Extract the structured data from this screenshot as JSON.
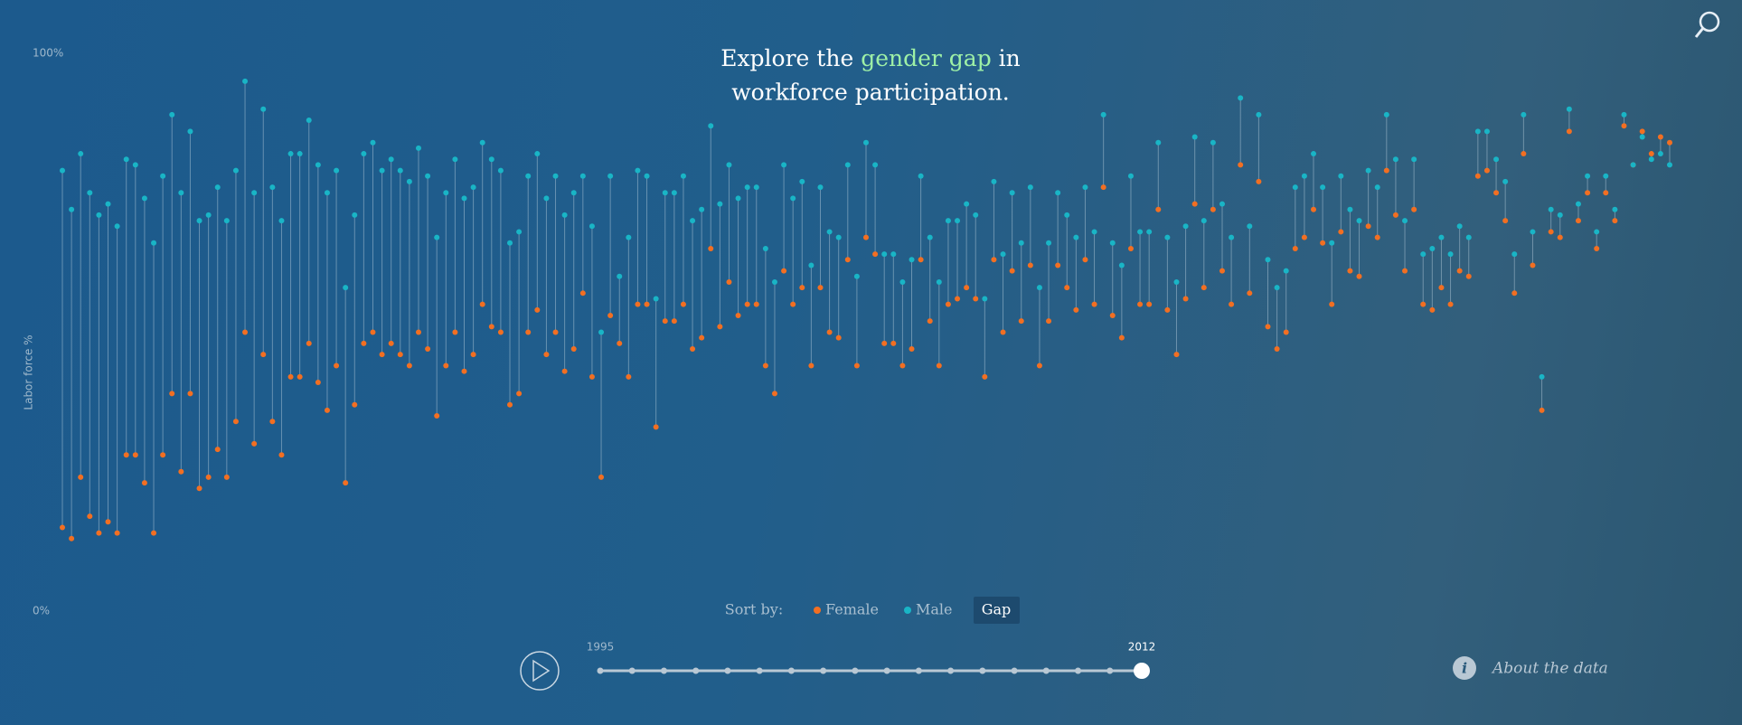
{
  "chart_data": {
    "type": "dumbbell",
    "title": {
      "before": "Explore the",
      "highlight": "gender gap",
      "after": "in",
      "line2": "workforce participation."
    },
    "ylabel": "Labor force %",
    "ylim": [
      0,
      100
    ],
    "yticks": [
      {
        "value": 0,
        "label": "0%"
      },
      {
        "value": 100,
        "label": "100%"
      }
    ],
    "series": [
      {
        "name": "Female",
        "color": "#f26f22",
        "values": [
          15,
          13,
          24,
          17,
          14,
          16,
          14,
          28,
          28,
          23,
          14,
          28,
          39,
          25,
          39,
          22,
          24,
          29,
          24,
          34,
          50,
          30,
          46,
          34,
          28,
          42,
          42,
          48,
          41,
          36,
          44,
          23,
          37,
          48,
          50,
          46,
          48,
          46,
          44,
          50,
          47,
          35,
          44,
          50,
          43,
          46,
          55,
          51,
          50,
          37,
          39,
          50,
          54,
          46,
          50,
          43,
          47,
          57,
          42,
          24,
          53,
          48,
          42,
          55,
          55,
          33,
          52,
          52,
          55,
          47,
          49,
          65,
          51,
          59,
          53,
          55,
          55,
          44,
          39,
          61,
          55,
          58,
          44,
          58,
          50,
          49,
          63,
          44,
          67,
          64,
          48,
          48,
          44,
          47,
          63,
          52,
          44,
          55,
          56,
          58,
          56,
          42,
          63,
          50,
          61,
          52,
          62,
          44,
          52,
          62,
          58,
          54,
          63,
          55,
          76,
          53,
          49,
          65,
          55,
          55,
          72,
          54,
          46,
          56,
          73,
          58,
          72,
          61,
          55,
          80,
          57,
          77,
          51,
          47,
          50,
          65,
          67,
          72,
          66,
          55,
          68,
          61,
          60,
          69,
          67,
          79,
          71,
          61,
          72,
          55,
          54,
          58,
          55,
          61,
          60,
          78,
          79,
          75,
          70,
          57,
          82,
          62,
          36,
          68,
          67,
          86,
          70,
          75,
          65,
          75,
          70,
          87,
          80,
          86,
          82,
          85,
          84
        ]
      },
      {
        "name": "Male",
        "color": "#19b5c6",
        "values": [
          79,
          72,
          82,
          75,
          71,
          73,
          69,
          81,
          80,
          74,
          66,
          78,
          89,
          75,
          86,
          70,
          71,
          76,
          70,
          79,
          95,
          75,
          90,
          76,
          70,
          82,
          82,
          88,
          80,
          75,
          79,
          58,
          71,
          82,
          84,
          79,
          81,
          79,
          77,
          83,
          78,
          67,
          75,
          81,
          74,
          76,
          84,
          81,
          79,
          66,
          68,
          78,
          82,
          74,
          78,
          71,
          75,
          78,
          69,
          50,
          78,
          60,
          67,
          79,
          78,
          56,
          75,
          75,
          78,
          70,
          72,
          87,
          73,
          80,
          74,
          76,
          76,
          65,
          59,
          80,
          74,
          77,
          62,
          76,
          68,
          67,
          80,
          60,
          84,
          80,
          64,
          64,
          59,
          63,
          78,
          67,
          59,
          70,
          70,
          73,
          71,
          56,
          77,
          64,
          75,
          66,
          76,
          58,
          66,
          75,
          71,
          67,
          76,
          68,
          89,
          66,
          62,
          78,
          68,
          68,
          84,
          67,
          59,
          69,
          85,
          70,
          84,
          73,
          67,
          92,
          69,
          89,
          63,
          58,
          61,
          76,
          78,
          82,
          76,
          66,
          78,
          72,
          70,
          79,
          76,
          89,
          81,
          70,
          81,
          64,
          65,
          67,
          64,
          69,
          67,
          86,
          86,
          81,
          77,
          64,
          89,
          68,
          42,
          72,
          71,
          90,
          73,
          78,
          68,
          78,
          72,
          89,
          80,
          85,
          81,
          82,
          80
        ]
      }
    ],
    "sort_label": "Sort by:",
    "gap_option": "Gap",
    "years": [
      1995,
      2012
    ],
    "about": "About the data"
  }
}
